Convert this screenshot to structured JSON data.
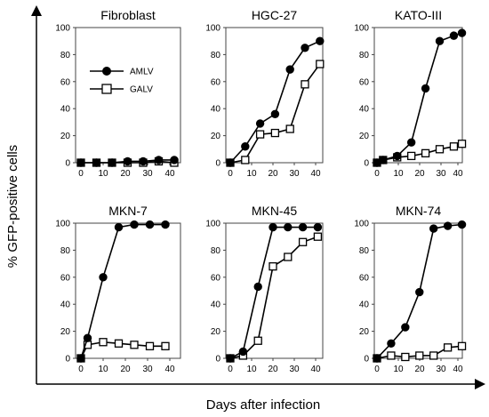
{
  "figure": {
    "ylabel": "% GFP-positive cells",
    "xlabel": "Days after infection"
  },
  "legend": [
    {
      "name": "AMLV",
      "marker": "filled-circle",
      "color": "#000000"
    },
    {
      "name": "GALV",
      "marker": "open-square",
      "color": "#000000"
    }
  ],
  "chart_data": [
    {
      "type": "line",
      "title": "Fibroblast",
      "xlim": [
        0,
        40
      ],
      "ylim": [
        0,
        100
      ],
      "xticks": [
        "0",
        "10",
        "20",
        "30",
        "40"
      ],
      "yticks": [
        "0",
        "20",
        "40",
        "60",
        "80",
        "100"
      ],
      "series": [
        {
          "name": "AMLV",
          "x": [
            0,
            7,
            14,
            21,
            28,
            35,
            42
          ],
          "y": [
            0,
            0,
            0,
            1,
            1,
            2,
            2
          ]
        },
        {
          "name": "GALV",
          "x": [
            0,
            7,
            14,
            21,
            28,
            35,
            42
          ],
          "y": [
            0,
            0,
            0,
            0,
            0,
            1,
            0
          ]
        }
      ]
    },
    {
      "type": "line",
      "title": "HGC-27",
      "xlim": [
        0,
        40
      ],
      "ylim": [
        0,
        100
      ],
      "xticks": [
        "0",
        "10",
        "20",
        "30",
        "40"
      ],
      "yticks": [
        "0",
        "20",
        "40",
        "60",
        "80",
        "100"
      ],
      "series": [
        {
          "name": "AMLV",
          "x": [
            0,
            7,
            14,
            21,
            28,
            35,
            42
          ],
          "y": [
            0,
            12,
            29,
            36,
            69,
            85,
            90
          ]
        },
        {
          "name": "GALV",
          "x": [
            0,
            7,
            14,
            21,
            28,
            35,
            42
          ],
          "y": [
            0,
            2,
            21,
            22,
            25,
            58,
            73
          ]
        }
      ]
    },
    {
      "type": "line",
      "title": "KATO-III",
      "xlim": [
        0,
        40
      ],
      "ylim": [
        0,
        100
      ],
      "xticks": [
        "0",
        "10",
        "20",
        "30",
        "40"
      ],
      "yticks": [
        "0",
        "20",
        "40",
        "60",
        "80",
        "100"
      ],
      "series": [
        {
          "name": "AMLV",
          "x": [
            0,
            3,
            10,
            17,
            24,
            31,
            38,
            42
          ],
          "y": [
            0,
            2,
            5,
            15,
            55,
            90,
            94,
            96
          ]
        },
        {
          "name": "GALV",
          "x": [
            0,
            3,
            10,
            17,
            24,
            31,
            38,
            42
          ],
          "y": [
            0,
            2,
            4,
            5,
            7,
            10,
            12,
            14
          ]
        }
      ]
    },
    {
      "type": "line",
      "title": "MKN-7",
      "xlim": [
        0,
        40
      ],
      "ylim": [
        0,
        100
      ],
      "xticks": [
        "0",
        "10",
        "20",
        "30",
        "40"
      ],
      "yticks": [
        "0",
        "20",
        "40",
        "60",
        "80",
        "100"
      ],
      "series": [
        {
          "name": "AMLV",
          "x": [
            0,
            3,
            10,
            17,
            24,
            31,
            38
          ],
          "y": [
            0,
            15,
            60,
            97,
            99,
            99,
            99
          ]
        },
        {
          "name": "GALV",
          "x": [
            0,
            3,
            10,
            17,
            24,
            31,
            38
          ],
          "y": [
            0,
            10,
            12,
            11,
            10,
            9,
            9
          ]
        }
      ]
    },
    {
      "type": "line",
      "title": "MKN-45",
      "xlim": [
        0,
        40
      ],
      "ylim": [
        0,
        100
      ],
      "xticks": [
        "0",
        "10",
        "20",
        "30",
        "40"
      ],
      "yticks": [
        "0",
        "20",
        "40",
        "60",
        "80",
        "100"
      ],
      "series": [
        {
          "name": "AMLV",
          "x": [
            0,
            6,
            13,
            20,
            27,
            34,
            41
          ],
          "y": [
            0,
            5,
            53,
            97,
            97,
            97,
            97
          ]
        },
        {
          "name": "GALV",
          "x": [
            0,
            6,
            13,
            20,
            27,
            34,
            41
          ],
          "y": [
            0,
            2,
            13,
            68,
            75,
            86,
            90
          ]
        }
      ]
    },
    {
      "type": "line",
      "title": "MKN-74",
      "xlim": [
        0,
        40
      ],
      "ylim": [
        0,
        100
      ],
      "xticks": [
        "0",
        "10",
        "20",
        "30",
        "40"
      ],
      "yticks": [
        "0",
        "20",
        "40",
        "60",
        "80",
        "100"
      ],
      "series": [
        {
          "name": "AMLV",
          "x": [
            0,
            7,
            14,
            21,
            28,
            35,
            42
          ],
          "y": [
            0,
            11,
            23,
            49,
            96,
            98,
            99
          ]
        },
        {
          "name": "GALV",
          "x": [
            0,
            7,
            14,
            21,
            28,
            35,
            42
          ],
          "y": [
            0,
            2,
            1,
            2,
            2,
            8,
            9
          ]
        }
      ]
    }
  ]
}
